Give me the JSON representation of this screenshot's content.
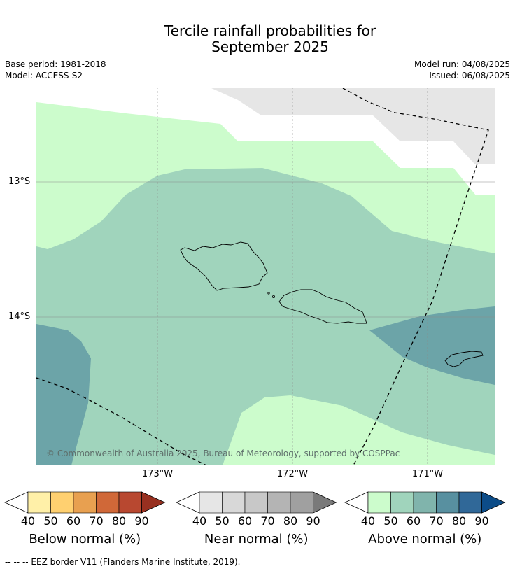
{
  "header": {
    "title_line1": "Tercile rainfall probabilities for",
    "title_line2": "September 2025",
    "base_period": "Base period: 1981-2018",
    "model": "Model: ACCESS-S2",
    "model_run": "Model run: 04/08/2025",
    "issued": "Issued: 06/08/2025"
  },
  "map": {
    "lat_labels": [
      "13°S",
      "14°S"
    ],
    "lon_labels": [
      "173°W",
      "172°W",
      "171°W"
    ],
    "credit": "© Commonwealth of Australia 2025, Bureau of Meteorology, supported by COSPPac",
    "colors": {
      "above_40": "#ccfccc",
      "above_50": "#a0d4bc",
      "above_70": "#6ca4a8",
      "near_40": "#e6e6e6"
    }
  },
  "legends": [
    {
      "title": "Below normal (%)",
      "ticks": [
        "40",
        "50",
        "60",
        "70",
        "80",
        "90"
      ],
      "colors": [
        "#fff0a8",
        "#ffd070",
        "#e8a050",
        "#d06838",
        "#b84830",
        "#983020"
      ]
    },
    {
      "title": "Near normal (%)",
      "ticks": [
        "40",
        "50",
        "60",
        "70",
        "80",
        "90"
      ],
      "colors": [
        "#e6e6e6",
        "#d8d8d8",
        "#c8c8c8",
        "#b4b4b4",
        "#a0a0a0",
        "#7a7a7a"
      ]
    },
    {
      "title": "Above normal (%)",
      "ticks": [
        "40",
        "50",
        "60",
        "70",
        "80",
        "90"
      ],
      "colors": [
        "#ccfccc",
        "#a0d4bc",
        "#80b4ac",
        "#5890a0",
        "#306898",
        "#0c4c88"
      ]
    }
  ],
  "footer": {
    "eez_note": "--  --  -- EEZ border V11 (Flanders Marine Institute, 2019)."
  }
}
